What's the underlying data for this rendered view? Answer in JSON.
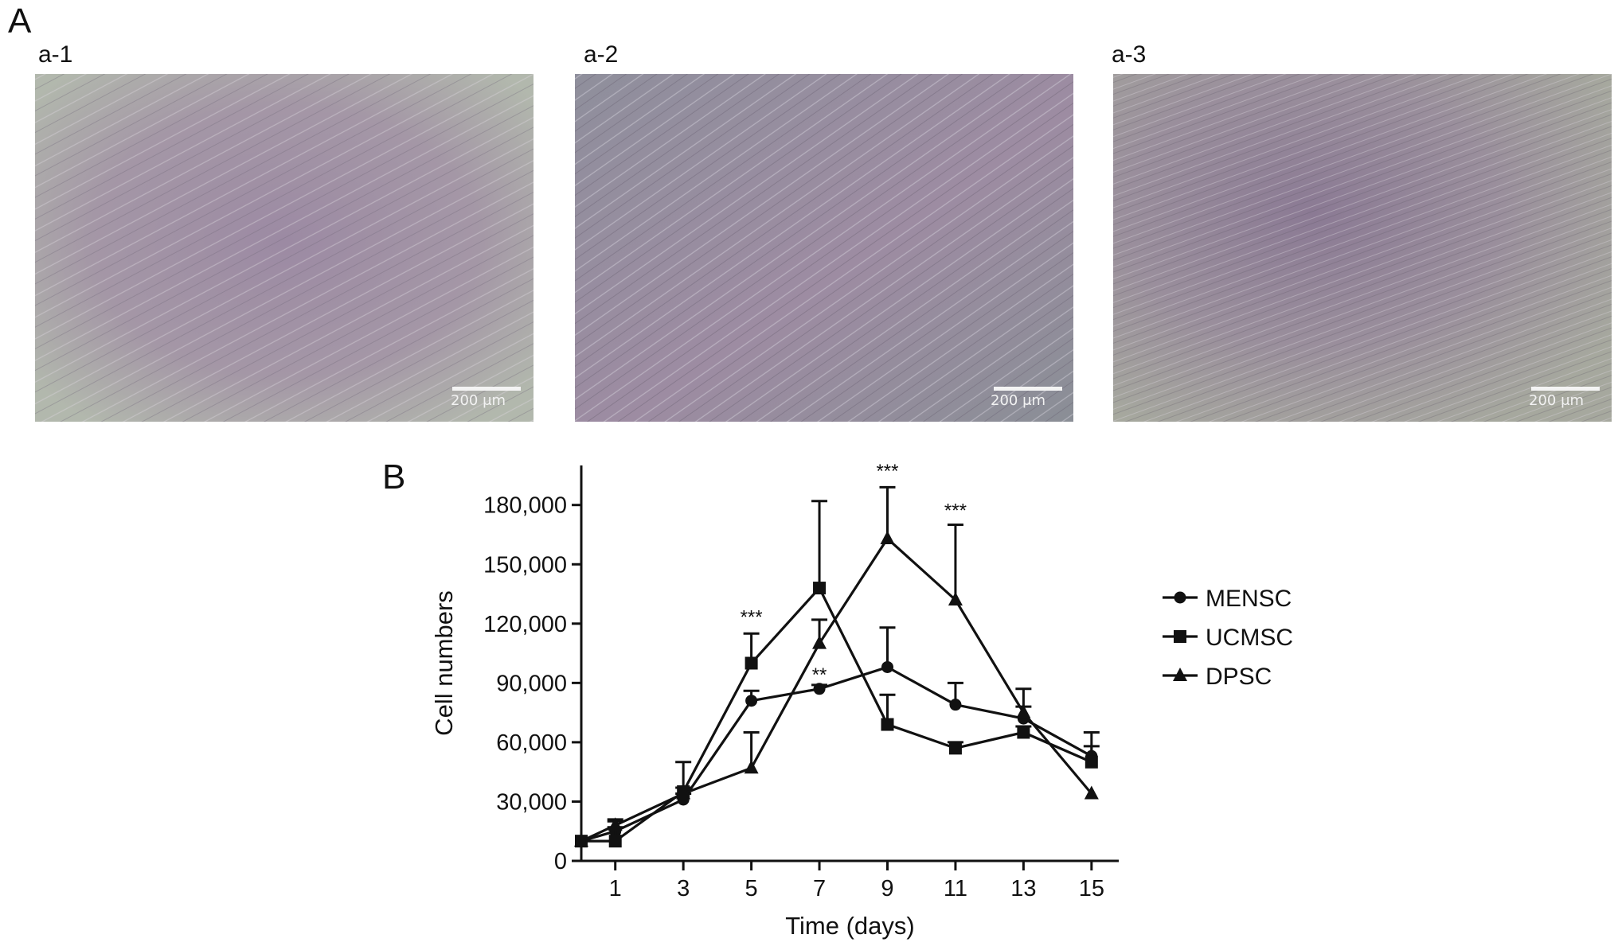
{
  "panel_a": {
    "letter": "A",
    "images": [
      {
        "label": "a-1",
        "scale_text": "200 μm"
      },
      {
        "label": "a-2",
        "scale_text": "200 μm"
      },
      {
        "label": "a-3",
        "scale_text": "200 μm"
      }
    ]
  },
  "panel_b": {
    "letter": "B"
  },
  "colors": {
    "ink": "#111111",
    "micro_bg": "#9a8fa0",
    "micro_tint": "#8d7f98"
  },
  "chart_data": {
    "type": "line",
    "xlabel": "Time (days)",
    "ylabel": "Cell numbers",
    "x": [
      0,
      1,
      3,
      5,
      7,
      9,
      11,
      13,
      15
    ],
    "xticks": [
      1,
      3,
      5,
      7,
      9,
      11,
      13,
      15
    ],
    "xlim": [
      0,
      15.8
    ],
    "yticks": [
      0,
      30000,
      60000,
      90000,
      120000,
      150000,
      180000
    ],
    "ytick_labels": [
      "0",
      "30,000",
      "60,000",
      "90,000",
      "120,000",
      "150,000",
      "180,000"
    ],
    "ylim": [
      0,
      200000
    ],
    "series": [
      {
        "name": "MENSC",
        "marker": "circle",
        "values": [
          10000,
          15000,
          31000,
          81000,
          87000,
          98000,
          79000,
          72000,
          53000
        ],
        "errors": [
          0,
          2000,
          3000,
          5000,
          2000,
          20000,
          11000,
          6000,
          5000
        ]
      },
      {
        "name": "UCMSC",
        "marker": "square",
        "values": [
          10000,
          10000,
          35000,
          100000,
          138000,
          69000,
          57000,
          65000,
          50000
        ],
        "errors": [
          0,
          10000,
          15000,
          15000,
          44000,
          15000,
          3000,
          3000,
          15000
        ]
      },
      {
        "name": "DPSC",
        "marker": "triangle",
        "values": [
          10000,
          18000,
          34000,
          47000,
          110000,
          163000,
          132000,
          75000,
          34000
        ],
        "errors": [
          0,
          3000,
          3000,
          18000,
          12000,
          26000,
          38000,
          12000,
          0
        ]
      }
    ],
    "annotations": [
      {
        "x": 5,
        "y": 116000,
        "text": "***"
      },
      {
        "x": 7,
        "y": 87000,
        "text": "**"
      },
      {
        "x": 9,
        "y": 190000,
        "text": "***"
      },
      {
        "x": 11,
        "y": 170000,
        "text": "***"
      }
    ],
    "legend_position": "right"
  }
}
